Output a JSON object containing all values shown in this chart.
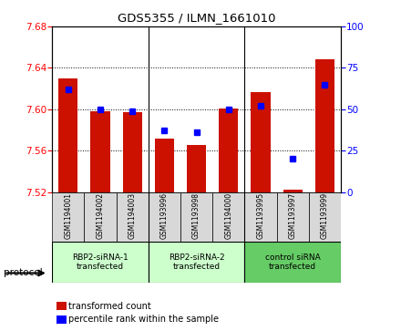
{
  "title": "GDS5355 / ILMN_1661010",
  "samples": [
    "GSM1194001",
    "GSM1194002",
    "GSM1194003",
    "GSM1193996",
    "GSM1193998",
    "GSM1194000",
    "GSM1193995",
    "GSM1193997",
    "GSM1193999"
  ],
  "red_values": [
    7.63,
    7.598,
    7.597,
    7.572,
    7.565,
    7.601,
    7.617,
    7.522,
    7.648
  ],
  "blue_percentiles": [
    62,
    50,
    49,
    37,
    36,
    50,
    52,
    20,
    65
  ],
  "ymin": 7.52,
  "ymax": 7.68,
  "yticks": [
    7.52,
    7.56,
    7.6,
    7.64,
    7.68
  ],
  "right_yticks": [
    0,
    25,
    50,
    75,
    100
  ],
  "groups": [
    {
      "label": "RBP2-siRNA-1\ntransfected",
      "start": 0,
      "end": 3,
      "color": "#ccffcc"
    },
    {
      "label": "RBP2-siRNA-2\ntransfected",
      "start": 3,
      "end": 6,
      "color": "#ccffcc"
    },
    {
      "label": "control siRNA\ntransfected",
      "start": 6,
      "end": 9,
      "color": "#66cc66"
    }
  ],
  "bar_color": "#cc1100",
  "dot_color": "#0000ff",
  "bar_bottom": 7.52,
  "bar_width": 0.6,
  "legend_red_label": "transformed count",
  "legend_blue_label": "percentile rank within the sample",
  "protocol_label": "protocol",
  "bg_color": "#d8d8d8"
}
